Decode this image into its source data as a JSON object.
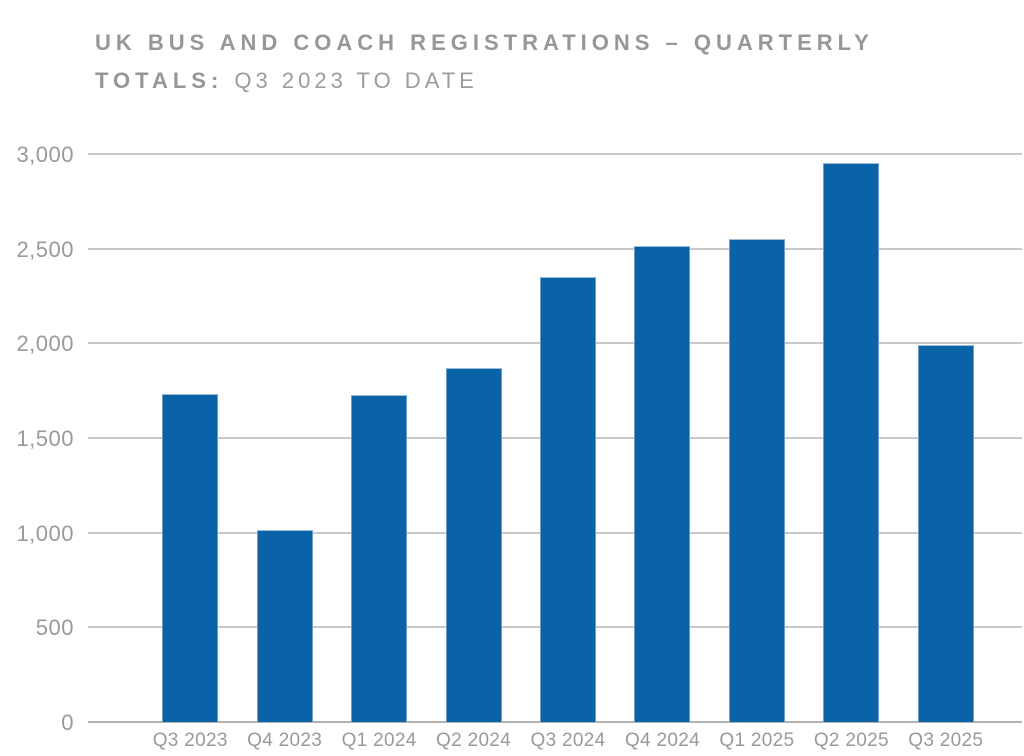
{
  "title": {
    "line1_bold": "UK BUS AND COACH REGISTRATIONS – QUARTERLY",
    "line2_bold": "TOTALS:",
    "line2_regular": "Q3 2023 TO DATE"
  },
  "colors": {
    "bar": "#0a63a7",
    "title_text": "#97979a",
    "axis_label_text": "#9a9a9c",
    "gridline": "#c9c9c9",
    "axis_line": "#b2b2b2",
    "background": "#ffffff"
  },
  "chart_data": {
    "type": "bar",
    "title": "UK BUS AND COACH REGISTRATIONS – QUARTERLY TOTALS: Q3 2023 TO DATE",
    "categories": [
      "Q3 2023",
      "Q4 2023",
      "Q1 2024",
      "Q2 2024",
      "Q3 2024",
      "Q4 2024",
      "Q1 2025",
      "Q2 2025",
      "Q3 2025"
    ],
    "values": [
      1730,
      1015,
      1725,
      1870,
      2350,
      2515,
      2550,
      2955,
      1990
    ],
    "xlabel": "",
    "ylabel": "",
    "ylim": [
      0,
      3000
    ],
    "ytick_step": 500,
    "ytick_labels": [
      "0",
      "500",
      "1,000",
      "1,500",
      "2,000",
      "2,500",
      "3,000"
    ],
    "grid": true,
    "legend": false,
    "bar_color": "#0a63a7"
  }
}
